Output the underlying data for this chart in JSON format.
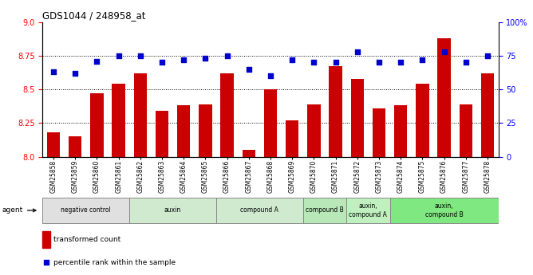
{
  "title": "GDS1044 / 248958_at",
  "samples": [
    "GSM25858",
    "GSM25859",
    "GSM25860",
    "GSM25861",
    "GSM25862",
    "GSM25863",
    "GSM25864",
    "GSM25865",
    "GSM25866",
    "GSM25867",
    "GSM25868",
    "GSM25869",
    "GSM25870",
    "GSM25871",
    "GSM25872",
    "GSM25873",
    "GSM25874",
    "GSM25875",
    "GSM25876",
    "GSM25877",
    "GSM25878"
  ],
  "bar_values": [
    8.18,
    8.15,
    8.47,
    8.54,
    8.62,
    8.34,
    8.38,
    8.39,
    8.62,
    8.05,
    8.5,
    8.27,
    8.39,
    8.67,
    8.58,
    8.36,
    8.38,
    8.54,
    8.88,
    8.39,
    8.62
  ],
  "dot_values": [
    63,
    62,
    71,
    75,
    75,
    70,
    72,
    73,
    75,
    65,
    60,
    72,
    70,
    70,
    78,
    70,
    70,
    72,
    78,
    70,
    75
  ],
  "bar_color": "#cc0000",
  "dot_color": "#0000cc",
  "ylim_left": [
    8.0,
    9.0
  ],
  "ylim_right": [
    0,
    100
  ],
  "yticks_left": [
    8.0,
    8.25,
    8.5,
    8.75,
    9.0
  ],
  "yticks_right": [
    0,
    25,
    50,
    75,
    100
  ],
  "ytick_labels_right": [
    "0",
    "25",
    "50",
    "75",
    "100%"
  ],
  "groups": [
    {
      "label": "negative control",
      "start": 0,
      "end": 3,
      "color": "#e0e0e0"
    },
    {
      "label": "auxin",
      "start": 4,
      "end": 7,
      "color": "#d0ead0"
    },
    {
      "label": "compound A",
      "start": 8,
      "end": 11,
      "color": "#d0ead0"
    },
    {
      "label": "compound B",
      "start": 12,
      "end": 13,
      "color": "#b8e8b8"
    },
    {
      "label": "auxin,\ncompound A",
      "start": 14,
      "end": 15,
      "color": "#c0f0c0"
    },
    {
      "label": "auxin,\ncompound B",
      "start": 16,
      "end": 20,
      "color": "#80e880"
    }
  ],
  "legend_bar_label": "transformed count",
  "legend_dot_label": "percentile rank within the sample",
  "agent_label": "agent"
}
